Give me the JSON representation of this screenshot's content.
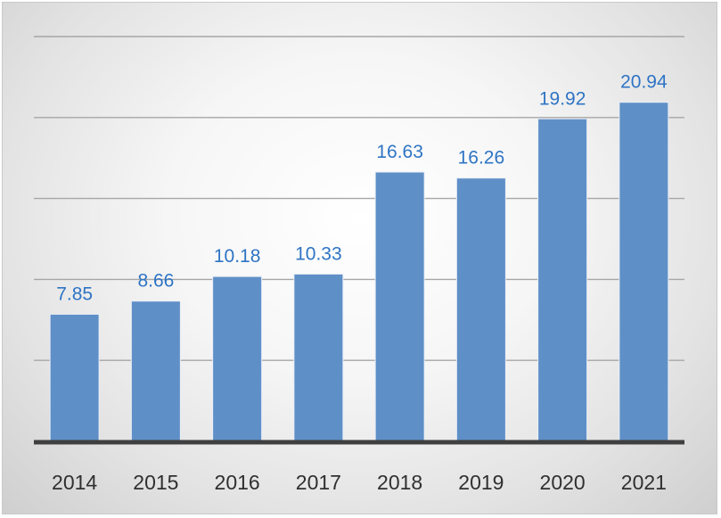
{
  "chart_data": {
    "type": "bar",
    "categories": [
      "2014",
      "2015",
      "2016",
      "2017",
      "2018",
      "2019",
      "2020",
      "2021"
    ],
    "values": [
      7.85,
      8.66,
      10.18,
      10.33,
      16.63,
      16.26,
      19.92,
      20.94
    ],
    "data_labels": [
      "7.85",
      "8.66",
      "10.18",
      "10.33",
      "16.63",
      "16.26",
      "19.92",
      "20.94"
    ],
    "ylim": [
      0,
      25
    ],
    "y_gridlines": [
      5,
      10,
      15,
      20,
      25
    ],
    "y_tick_labels_visible": false,
    "grid": true,
    "legend": "none",
    "colors": {
      "bar": "#5f8fc7",
      "data_label": "#2e74c4",
      "tick_label": "#303030",
      "gridline": "#a6a6a6",
      "baseline": "#3f3f3f"
    }
  }
}
